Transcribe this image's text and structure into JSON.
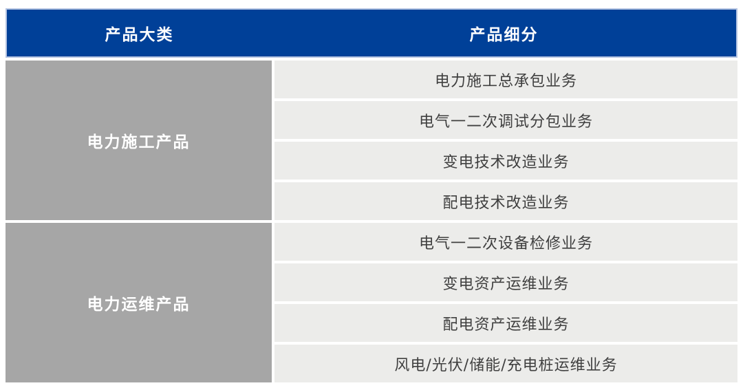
{
  "colors": {
    "header_bg": "#004098",
    "header_border": "#b6c5e2",
    "header_text": "#ffffff",
    "category_bg": "#a6a6a6",
    "category_text": "#ffffff",
    "row_bg": "#ececea",
    "row_text": "#3f3f3f"
  },
  "table": {
    "header": {
      "category_col": "产品大类",
      "subdivision_col": "产品细分"
    },
    "groups": [
      {
        "category": "电力施工产品",
        "items": [
          "电力施工总承包业务",
          "电气一二次调试分包业务",
          "变电技术改造业务",
          "配电技术改造业务"
        ]
      },
      {
        "category": "电力运维产品",
        "items": [
          "电气一二次设备检修业务",
          "变电资产运维业务",
          "配电资产运维业务",
          "风电/光伏/储能/充电桩运维业务"
        ]
      }
    ]
  }
}
